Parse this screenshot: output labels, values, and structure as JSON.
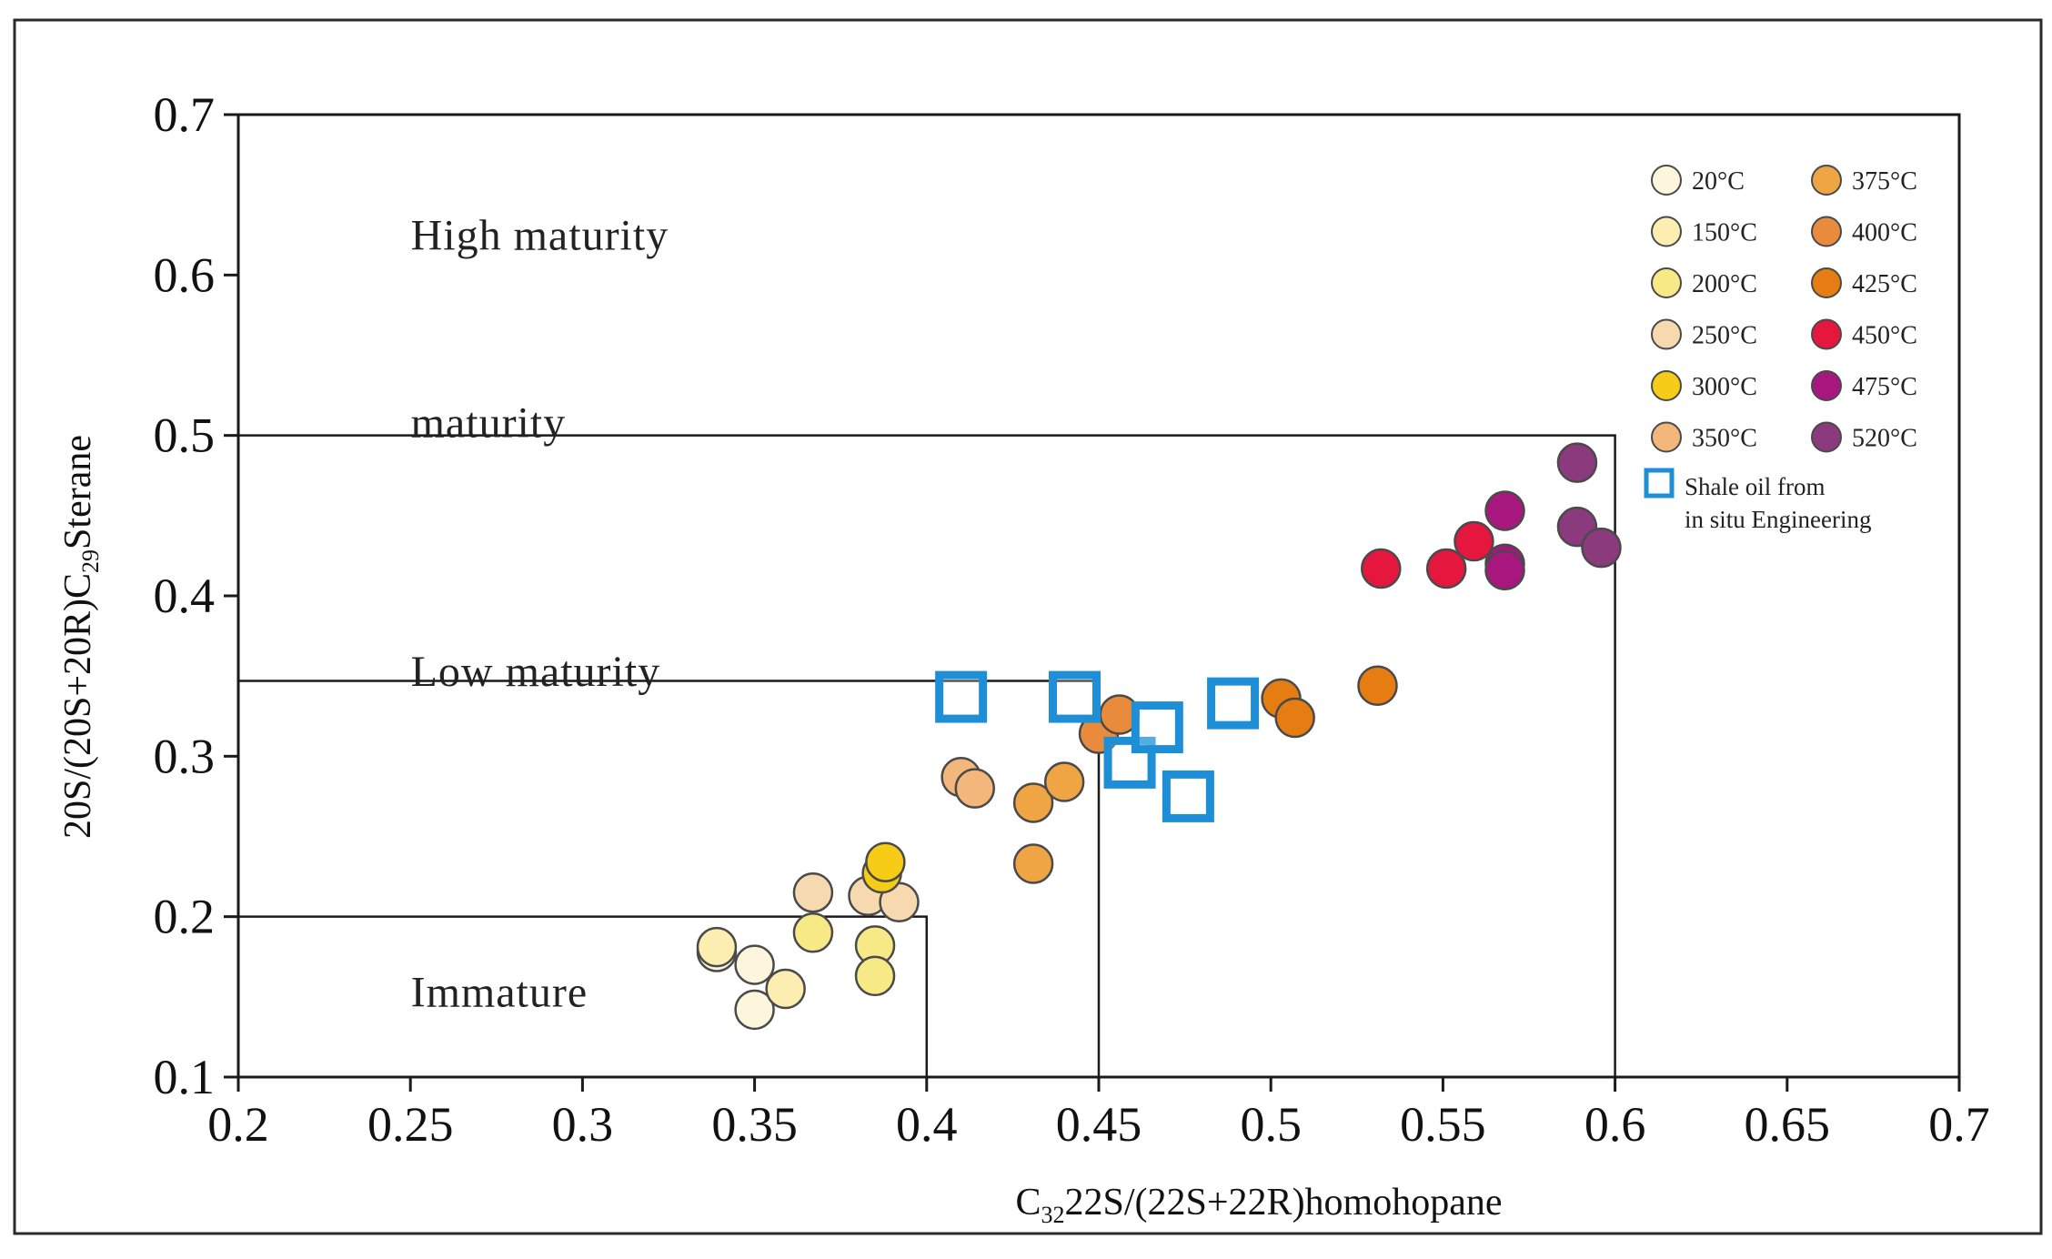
{
  "chart_data": {
    "type": "scatter",
    "xlabel_parts": [
      "C",
      "32",
      "22S/(22S+22R)homohopane"
    ],
    "ylabel_parts": [
      "20S/(20S+20R)C",
      "29",
      "Sterane"
    ],
    "xlim": [
      0.2,
      0.7
    ],
    "ylim": [
      0.1,
      0.7
    ],
    "x_ticks": [
      "0.2",
      "0.25",
      "0.3",
      "0.35",
      "0.4",
      "0.45",
      "0.5",
      "0.55",
      "0.6",
      "0.65",
      "0.7"
    ],
    "y_ticks": [
      "0.1",
      "0.2",
      "0.3",
      "0.4",
      "0.5",
      "0.6",
      "0.7"
    ],
    "regions": [
      {
        "label": "High maturity",
        "label_at": [
          0.225,
          0.625
        ]
      },
      {
        "label": "maturity",
        "label_at": [
          0.225,
          0.508
        ]
      },
      {
        "label": "Low maturity",
        "label_at": [
          0.225,
          0.353
        ]
      },
      {
        "label": "Immature",
        "label_at": [
          0.225,
          0.153
        ]
      }
    ],
    "boundaries": [
      [
        [
          0.2,
          0.5
        ],
        [
          0.6,
          0.5
        ],
        [
          0.6,
          0.1
        ]
      ],
      [
        [
          0.2,
          0.347
        ],
        [
          0.45,
          0.347
        ],
        [
          0.45,
          0.1
        ]
      ],
      [
        [
          0.2,
          0.2
        ],
        [
          0.4,
          0.2
        ],
        [
          0.4,
          0.1
        ]
      ]
    ],
    "series": [
      {
        "name": "20°C",
        "color": "#fdf6dc",
        "marker": "circle",
        "points": [
          [
            0.339,
            0.178
          ],
          [
            0.35,
            0.17
          ],
          [
            0.35,
            0.142
          ]
        ]
      },
      {
        "name": "150°C",
        "color": "#fbeeb0",
        "marker": "circle",
        "points": [
          [
            0.339,
            0.181
          ],
          [
            0.359,
            0.155
          ]
        ]
      },
      {
        "name": "200°C",
        "color": "#f7ea86",
        "marker": "circle",
        "points": [
          [
            0.367,
            0.19
          ],
          [
            0.385,
            0.182
          ],
          [
            0.385,
            0.163
          ]
        ]
      },
      {
        "name": "250°C",
        "color": "#f6d9ae",
        "marker": "circle",
        "points": [
          [
            0.367,
            0.215
          ],
          [
            0.383,
            0.213
          ],
          [
            0.392,
            0.209
          ]
        ]
      },
      {
        "name": "300°C",
        "color": "#f6cc16",
        "marker": "circle",
        "points": [
          [
            0.387,
            0.227
          ],
          [
            0.388,
            0.234
          ]
        ]
      },
      {
        "name": "350°C",
        "color": "#f3b77c",
        "marker": "circle",
        "points": [
          [
            0.41,
            0.287
          ],
          [
            0.414,
            0.28
          ]
        ]
      },
      {
        "name": "375°C",
        "color": "#efa543",
        "marker": "circle",
        "points": [
          [
            0.431,
            0.271
          ],
          [
            0.431,
            0.233
          ],
          [
            0.44,
            0.284
          ]
        ]
      },
      {
        "name": "400°C",
        "color": "#e98b3c",
        "marker": "circle",
        "points": [
          [
            0.45,
            0.314
          ],
          [
            0.456,
            0.326
          ]
        ]
      },
      {
        "name": "425°C",
        "color": "#e57d12",
        "marker": "circle",
        "points": [
          [
            0.503,
            0.336
          ],
          [
            0.507,
            0.324
          ],
          [
            0.531,
            0.344
          ]
        ]
      },
      {
        "name": "450°C",
        "color": "#e5173e",
        "marker": "circle",
        "points": [
          [
            0.532,
            0.417
          ],
          [
            0.551,
            0.417
          ],
          [
            0.559,
            0.434
          ]
        ]
      },
      {
        "name": "475°C",
        "color": "#a8177e",
        "marker": "circle",
        "points": [
          [
            0.568,
            0.453
          ],
          [
            0.568,
            0.42
          ],
          [
            0.568,
            0.416
          ]
        ]
      },
      {
        "name": "520°C",
        "color": "#8c3a7e",
        "marker": "circle",
        "points": [
          [
            0.589,
            0.483
          ],
          [
            0.589,
            0.443
          ],
          [
            0.596,
            0.43
          ]
        ]
      },
      {
        "name_lines": [
          "Shale oil from",
          "in situ Engineering"
        ],
        "color": "#1e8fd6",
        "marker": "square",
        "points": [
          [
            0.41,
            0.337
          ],
          [
            0.443,
            0.337
          ],
          [
            0.459,
            0.296
          ],
          [
            0.467,
            0.318
          ],
          [
            0.476,
            0.275
          ],
          [
            0.489,
            0.333
          ]
        ]
      }
    ]
  }
}
